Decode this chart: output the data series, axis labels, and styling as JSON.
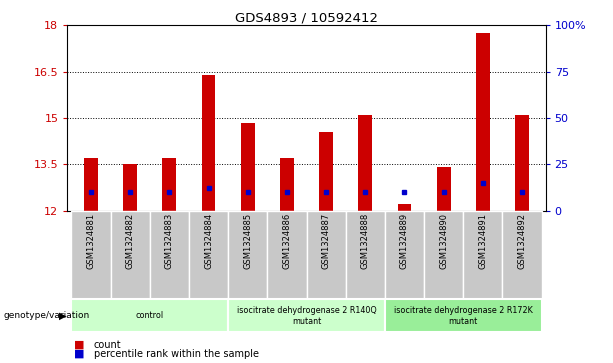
{
  "title": "GDS4893 / 10592412",
  "samples": [
    "GSM1324881",
    "GSM1324882",
    "GSM1324883",
    "GSM1324884",
    "GSM1324885",
    "GSM1324886",
    "GSM1324887",
    "GSM1324888",
    "GSM1324889",
    "GSM1324890",
    "GSM1324891",
    "GSM1324892"
  ],
  "count_values": [
    13.7,
    13.5,
    13.7,
    16.4,
    14.85,
    13.7,
    14.55,
    15.1,
    12.2,
    13.4,
    17.75,
    15.1
  ],
  "percentile_values": [
    10,
    10,
    10,
    12,
    10,
    10,
    10,
    10,
    10,
    10,
    15,
    10
  ],
  "ylim_left": [
    12,
    18
  ],
  "ylim_right": [
    0,
    100
  ],
  "yticks_left": [
    12,
    13.5,
    15,
    16.5,
    18
  ],
  "yticks_right": [
    0,
    25,
    50,
    75,
    100
  ],
  "ytick_labels_left": [
    "12",
    "13.5",
    "15",
    "16.5",
    "18"
  ],
  "ytick_labels_right": [
    "0",
    "25",
    "50",
    "75",
    "100%"
  ],
  "bar_color": "#cc0000",
  "percentile_color": "#0000cc",
  "bar_bottom": 12,
  "groups": [
    {
      "label": "control",
      "start": 0,
      "end": 3,
      "color": "#ccffcc"
    },
    {
      "label": "isocitrate dehydrogenase 2 R140Q\nmutant",
      "start": 4,
      "end": 7,
      "color": "#ccffcc"
    },
    {
      "label": "isocitrate dehydrogenase 2 R172K\nmutant",
      "start": 8,
      "end": 11,
      "color": "#99ee99"
    }
  ],
  "genotype_label": "genotype/variation",
  "legend_count_label": "count",
  "legend_percentile_label": "percentile rank within the sample",
  "grid_dotted_values": [
    13.5,
    15,
    16.5
  ],
  "bar_width": 0.35,
  "axis_tick_color_left": "#cc0000",
  "axis_tick_color_right": "#0000cc",
  "sample_box_color": "#c8c8c8",
  "figure_bg": "#ffffff"
}
